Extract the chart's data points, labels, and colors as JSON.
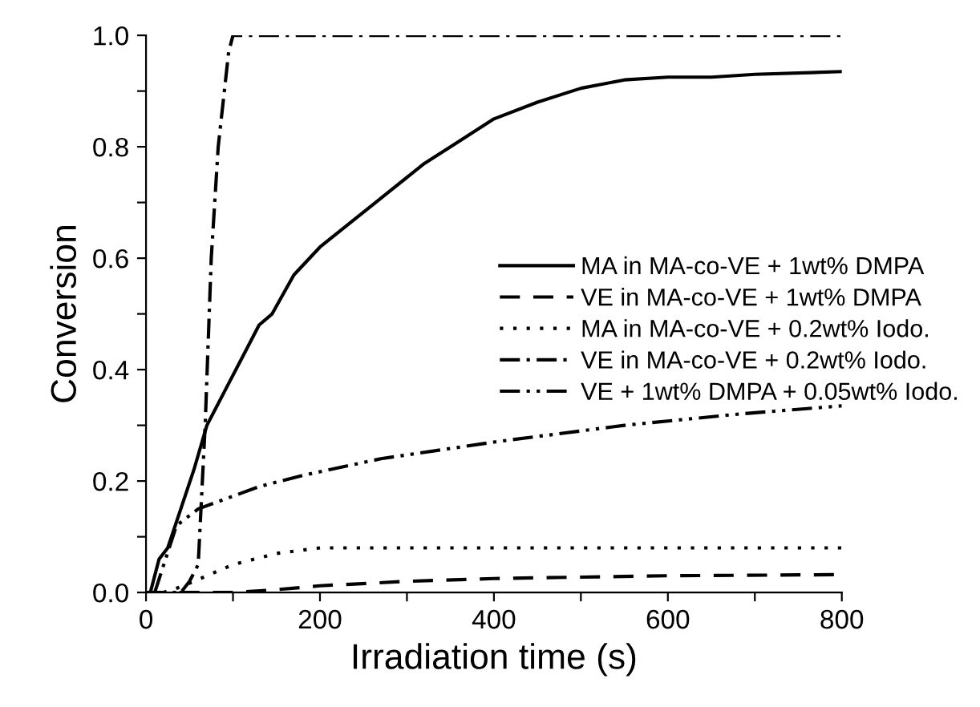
{
  "chart_data": {
    "type": "line",
    "xlabel": "Irradiation time (s)",
    "ylabel": "Conversion",
    "xlim": [
      0,
      800
    ],
    "ylim": [
      0,
      1.0
    ],
    "xticks": [
      0,
      {
        "value": 100,
        "label": null
      },
      200,
      {
        "value": 300,
        "label": null
      },
      400,
      {
        "value": 500,
        "label": null
      },
      600,
      {
        "value": 700,
        "label": null
      },
      800
    ],
    "yticks": [
      "0.0",
      {
        "value": 0.1,
        "label": null
      },
      {
        "value": 0.2,
        "label": "0.2"
      },
      {
        "value": 0.3,
        "label": null
      },
      {
        "value": 0.4,
        "label": "0.4"
      },
      {
        "value": 0.5,
        "label": null
      },
      {
        "value": 0.6,
        "label": "0.6"
      },
      {
        "value": 0.7,
        "label": null
      },
      {
        "value": 0.8,
        "label": "0.8"
      },
      {
        "value": 0.9,
        "label": null
      },
      {
        "value": 1.0,
        "label": "1.0"
      }
    ],
    "grid": false,
    "legend": "right",
    "marker": "none",
    "series": [
      {
        "name": "MA in MA-co-VE + 1wt% DMPA",
        "color": "#000000",
        "line_style": "solid",
        "x": [
          5,
          15,
          25,
          40,
          55,
          70,
          90,
          110,
          130,
          145,
          170,
          200,
          240,
          280,
          320,
          360,
          400,
          450,
          500,
          550,
          600,
          650,
          700,
          800
        ],
        "values": [
          0,
          0.06,
          0.08,
          0.15,
          0.22,
          0.3,
          0.36,
          0.42,
          0.48,
          0.5,
          0.57,
          0.62,
          0.67,
          0.72,
          0.77,
          0.81,
          0.85,
          0.88,
          0.905,
          0.92,
          0.925,
          0.925,
          0.93,
          0.935
        ]
      },
      {
        "name": "VE in MA-co-VE + 1wt% DMPA",
        "color": "#000000",
        "line_style": "dashed",
        "x": [
          0,
          100,
          150,
          200,
          300,
          400,
          600,
          800
        ],
        "values": [
          0,
          0,
          0.005,
          0.012,
          0.02,
          0.025,
          0.03,
          0.032
        ]
      },
      {
        "name": "MA in MA-co-VE + 0.2wt% Iodo.",
        "color": "#000000",
        "line_style": "dotted",
        "x": [
          20,
          40,
          70,
          100,
          150,
          200,
          800
        ],
        "values": [
          0,
          0.01,
          0.03,
          0.05,
          0.07,
          0.08,
          0.08
        ]
      },
      {
        "name": "VE in MA-co-VE + 0.2wt% Iodo.",
        "color": "#000000",
        "line_style": "dashdot",
        "x": [
          0,
          40,
          50,
          60,
          68,
          75,
          83,
          95,
          100,
          800
        ],
        "values": [
          0,
          0,
          0.02,
          0.05,
          0.3,
          0.6,
          0.8,
          0.97,
          1.0,
          1.0
        ]
      },
      {
        "name": "VE + 1wt% DMPA + 0.05wt% Iodo.",
        "color": "#000000",
        "line_style": "dashdotdot",
        "x": [
          10,
          35,
          60,
          130,
          180,
          270,
          400,
          550,
          680,
          800
        ],
        "values": [
          0,
          0.12,
          0.15,
          0.19,
          0.21,
          0.24,
          0.27,
          0.3,
          0.32,
          0.335
        ]
      }
    ]
  }
}
